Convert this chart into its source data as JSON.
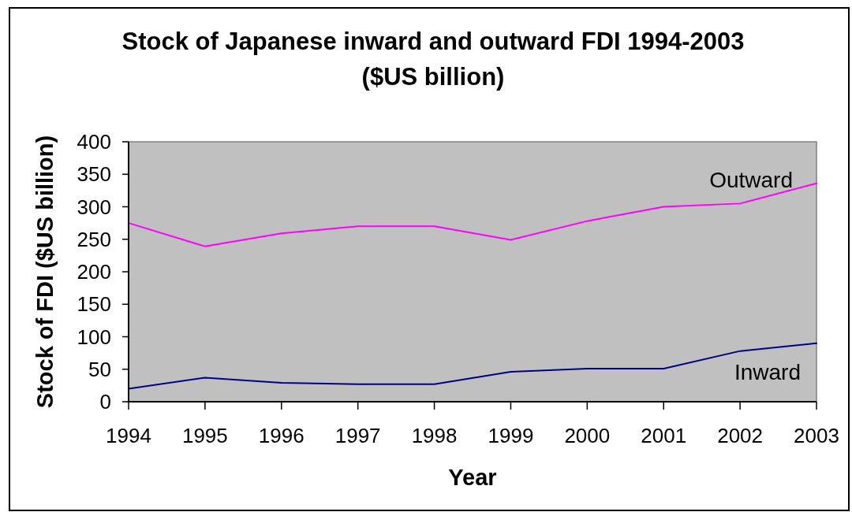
{
  "chart_data": {
    "type": "line",
    "title": "Stock of Japanese inward and outward FDI 1994-2003\n($US billion)",
    "xlabel": "Year",
    "ylabel": "Stock of FDI ($US billion)",
    "categories": [
      "1994",
      "1995",
      "1996",
      "1997",
      "1998",
      "1999",
      "2000",
      "2001",
      "2002",
      "2003"
    ],
    "series": [
      {
        "name": "Outward",
        "color": "#ff00ff",
        "values": [
          275,
          239,
          259,
          270,
          270,
          249,
          278,
          300,
          305,
          336
        ]
      },
      {
        "name": "Inward",
        "color": "#000080",
        "values": [
          20,
          37,
          29,
          27,
          27,
          46,
          51,
          51,
          78,
          90
        ]
      }
    ],
    "ylim": [
      0,
      400
    ],
    "yticks": [
      0,
      50,
      100,
      150,
      200,
      250,
      300,
      350,
      400
    ],
    "grid": false,
    "marker": "none",
    "line_style": "solid"
  }
}
